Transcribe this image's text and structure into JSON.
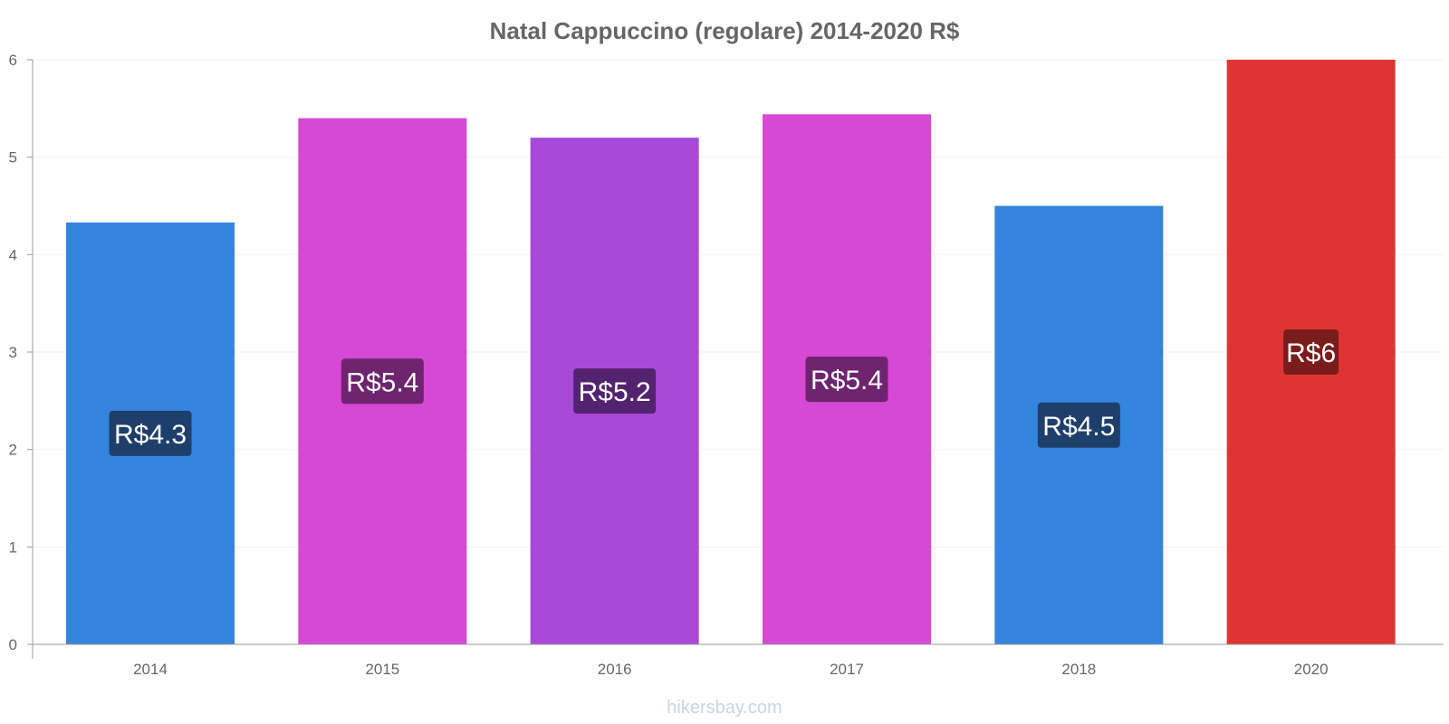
{
  "footer": "hikersbay.com",
  "colors": {
    "blue": "#3584de",
    "blue_label": "#1f3f6b",
    "magenta": "#d649d4",
    "magenta_label": "#6e246e",
    "purple": "#a84ad8",
    "purple_label": "#542370",
    "red": "#e03434",
    "red_label": "#7b1c1c",
    "axis": "#999999",
    "grid": "#f2f2f2"
  },
  "chart_data": {
    "type": "bar",
    "title": "Natal Cappuccino (regolare) 2014-2020 R$",
    "xlabel": "",
    "ylabel": "",
    "ylim": [
      0,
      6
    ],
    "yticks": [
      "0",
      "1",
      "2",
      "3",
      "4",
      "5",
      "6"
    ],
    "grid": true,
    "categories": [
      "2014",
      "2015",
      "2016",
      "2017",
      "2018",
      "2020"
    ],
    "values": [
      4.33,
      5.4,
      5.2,
      5.44,
      4.5,
      6
    ],
    "labels": [
      "R$4.3",
      "R$5.4",
      "R$5.2",
      "R$5.4",
      "R$4.5",
      "R$6"
    ],
    "bar_colors": [
      "blue",
      "magenta",
      "purple",
      "magenta",
      "blue",
      "red"
    ]
  }
}
